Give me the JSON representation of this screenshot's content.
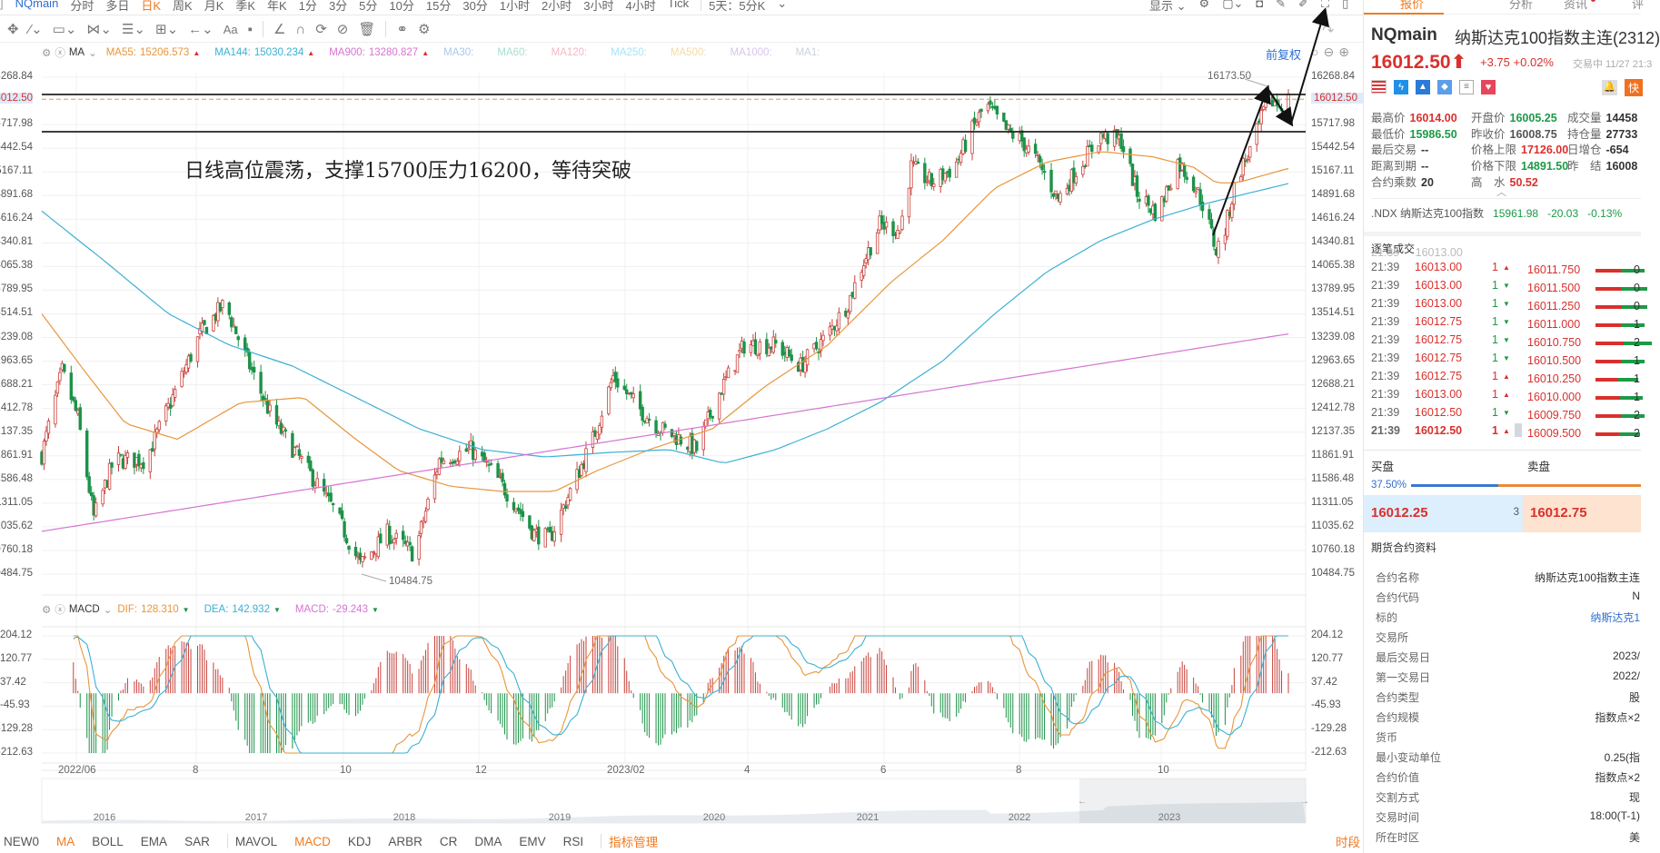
{
  "toolbar": {
    "symbol": "NQmain",
    "periods": [
      "分时",
      "多日",
      "日K",
      "周K",
      "月K",
      "季K",
      "年K",
      "1分",
      "3分",
      "5分",
      "10分",
      "15分",
      "30分",
      "1小时",
      "2小时",
      "3小时",
      "4小时",
      "Tick"
    ],
    "active_period": "日K",
    "multi": "5天：5分K",
    "display": "显示"
  },
  "legend": {
    "ma_label": "MA",
    "ma55": "MA55:",
    "ma55_v": "15206.573",
    "ma144": "MA144:",
    "ma144_v": "15030.234",
    "ma900": "MA900:",
    "ma900_v": "13280.827",
    "inactive": [
      "MA30:",
      "MA60:",
      "MA120:",
      "MA250:",
      "MA500:",
      "MA1000:",
      "MA1:"
    ],
    "adjust": "前复权"
  },
  "colors": {
    "ma55": "#e8963a",
    "ma144": "#3ab0d4",
    "ma900": "#d674d2",
    "up": "#c9403a",
    "down": "#1c9248",
    "accent": "#ef7a22"
  },
  "annotation": {
    "text": "日线高位震荡，支撑15700压力16200，等待突破",
    "high_label": "16173.50",
    "low_label": "10484.75"
  },
  "chart_data": {
    "type": "candlestick",
    "yticks": [
      "16268.84",
      "16012.50",
      "15717.98",
      "15442.54",
      "15167.11",
      "14891.68",
      "14616.24",
      "14340.81",
      "14065.38",
      "13789.95",
      "13514.51",
      "13239.08",
      "12963.65",
      "12688.21",
      "12412.78",
      "12137.35",
      "11861.91",
      "11586.48",
      "11311.05",
      "11035.62",
      "10760.18",
      "10484.75"
    ],
    "ylim": [
      10484.75,
      16268.84
    ],
    "current_price": 16012.5,
    "xlabels": [
      "2022/06",
      "8",
      "10",
      "12",
      "2023/02",
      "4",
      "6",
      "8",
      "10"
    ],
    "close_path": [
      [
        "2022-05-24",
        11873
      ],
      [
        "2022-06-02",
        12847
      ],
      [
        "2022-06-09",
        12299
      ],
      [
        "2022-06-16",
        11142
      ],
      [
        "2022-06-25",
        11812
      ],
      [
        "2022-07-09",
        11812
      ],
      [
        "2022-07-21",
        12542
      ],
      [
        "2022-08-02",
        13273
      ],
      [
        "2022-08-13",
        13638
      ],
      [
        "2022-08-22",
        13030
      ],
      [
        "2022-09-03",
        12299
      ],
      [
        "2022-09-22",
        11568
      ],
      [
        "2022-10-01",
        11203
      ],
      [
        "2022-10-12",
        10594
      ],
      [
        "2022-10-24",
        10959
      ],
      [
        "2022-11-05",
        10716
      ],
      [
        "2022-11-16",
        11812
      ],
      [
        "2022-11-30",
        11934
      ],
      [
        "2022-12-09",
        11690
      ],
      [
        "2022-12-19",
        11325
      ],
      [
        "2022-12-28",
        10959
      ],
      [
        "2023-01-04",
        10899
      ],
      [
        "2023-01-13",
        11447
      ],
      [
        "2023-01-23",
        12055
      ],
      [
        "2023-02-01",
        12786
      ],
      [
        "2023-02-12",
        12421
      ],
      [
        "2023-02-22",
        12177
      ],
      [
        "2023-03-03",
        12055
      ],
      [
        "2023-03-10",
        11934
      ],
      [
        "2023-03-19",
        12542
      ],
      [
        "2023-03-31",
        13151
      ],
      [
        "2023-04-14",
        13151
      ],
      [
        "2023-04-25",
        12907
      ],
      [
        "2023-05-07",
        13273
      ],
      [
        "2023-05-16",
        13638
      ],
      [
        "2023-05-23",
        14125
      ],
      [
        "2023-05-30",
        14552
      ],
      [
        "2023-06-08",
        14491
      ],
      [
        "2023-06-13",
        15221
      ],
      [
        "2023-06-22",
        15039
      ],
      [
        "2023-07-02",
        15221
      ],
      [
        "2023-07-11",
        15708
      ],
      [
        "2023-07-16",
        15952
      ],
      [
        "2023-07-25",
        15648
      ],
      [
        "2023-08-01",
        15526
      ],
      [
        "2023-08-08",
        15282
      ],
      [
        "2023-08-17",
        14856
      ],
      [
        "2023-08-26",
        15221
      ],
      [
        "2023-09-05",
        15587
      ],
      [
        "2023-09-14",
        15526
      ],
      [
        "2023-09-21",
        14917
      ],
      [
        "2023-09-30",
        14673
      ],
      [
        "2023-10-09",
        15282
      ],
      [
        "2023-10-16",
        15039
      ],
      [
        "2023-10-21",
        14734
      ],
      [
        "2023-10-26",
        14247
      ],
      [
        "2023-10-30",
        14491
      ],
      [
        "2023-11-04",
        15100
      ],
      [
        "2023-11-11",
        15465
      ],
      [
        "2023-11-18",
        16013
      ],
      [
        "2023-11-23",
        15952
      ],
      [
        "2023-11-27",
        16012.5
      ]
    ],
    "ma55": [
      [
        "2022-05-24",
        13514
      ],
      [
        "2022-06-12",
        12847
      ],
      [
        "2022-06-30",
        12238
      ],
      [
        "2022-07-23",
        12055
      ],
      [
        "2022-08-20",
        12481
      ],
      [
        "2022-09-17",
        12542
      ],
      [
        "2022-10-10",
        12055
      ],
      [
        "2022-10-29",
        11690
      ],
      [
        "2022-11-21",
        11507
      ],
      [
        "2022-12-14",
        11447
      ],
      [
        "2023-01-06",
        11447
      ],
      [
        "2023-01-25",
        11690
      ],
      [
        "2023-02-17",
        11934
      ],
      [
        "2023-03-17",
        12177
      ],
      [
        "2023-04-09",
        12664
      ],
      [
        "2023-05-07",
        13151
      ],
      [
        "2023-06-04",
        13882
      ],
      [
        "2023-06-27",
        14369
      ],
      [
        "2023-07-20",
        14978
      ],
      [
        "2023-08-12",
        15282
      ],
      [
        "2023-09-05",
        15404
      ],
      [
        "2023-09-28",
        15343
      ],
      [
        "2023-10-16",
        15221
      ],
      [
        "2023-10-26",
        15039
      ],
      [
        "2023-11-04",
        15039
      ],
      [
        "2023-11-27",
        15206.573
      ]
    ],
    "ma144": [
      [
        "2022-05-24",
        14710
      ],
      [
        "2022-06-21",
        14125
      ],
      [
        "2022-07-19",
        13516
      ],
      [
        "2022-08-15",
        13151
      ],
      [
        "2022-09-12",
        12907
      ],
      [
        "2022-10-10",
        12542
      ],
      [
        "2022-11-07",
        12177
      ],
      [
        "2022-12-05",
        11934
      ],
      [
        "2023-01-02",
        11848
      ],
      [
        "2023-01-30",
        11900
      ],
      [
        "2023-02-26",
        11934
      ],
      [
        "2023-03-22",
        11775
      ],
      [
        "2023-04-14",
        11934
      ],
      [
        "2023-05-07",
        12177
      ],
      [
        "2023-05-30",
        12481
      ],
      [
        "2023-06-27",
        12968
      ],
      [
        "2023-07-20",
        13516
      ],
      [
        "2023-08-12",
        14003
      ],
      [
        "2023-09-05",
        14369
      ],
      [
        "2023-09-28",
        14612
      ],
      [
        "2023-10-21",
        14795
      ],
      [
        "2023-11-09",
        14917
      ],
      [
        "2023-11-27",
        15030.234
      ]
    ],
    "ma900": [
      [
        "2022-05-24",
        10983
      ],
      [
        "2023-11-27",
        13280.827
      ]
    ],
    "macd": {
      "label": "MACD",
      "dif_label": "DIF:",
      "dif": "128.310",
      "dea_label": "DEA:",
      "dea": "142.932",
      "macd_label": "MACD:",
      "macd": "-29.243",
      "yticks": [
        "204.12",
        "120.77",
        "37.42",
        "-45.93",
        "-129.28",
        "-212.63"
      ],
      "ylim": [
        -212.63,
        204.12
      ]
    },
    "navigator_years": [
      "2016",
      "2017",
      "2018",
      "2019",
      "2020",
      "2021",
      "2022",
      "2023"
    ]
  },
  "bottom": {
    "tabs": [
      "NEW0",
      "MA",
      "BOLL",
      "EMA",
      "SAR",
      "MAVOL",
      "MACD",
      "KDJ",
      "ARBR",
      "CR",
      "DMA",
      "EMV",
      "RSI"
    ],
    "manage": "指标管理",
    "period": "时段"
  },
  "panel": {
    "tabs": [
      "报价",
      "分析",
      "资讯",
      "评"
    ],
    "symbol": "NQmain",
    "name": "纳斯达克100指数主连(2312)",
    "price": "16012.50",
    "change": "+3.75",
    "pct": "+0.02%",
    "status": "交易中 11/27 21:3",
    "quick": "快",
    "stats": [
      [
        {
          "l": "最高价",
          "v": "16014.00",
          "c": "red"
        },
        {
          "l": "开盘价",
          "v": "16005.25",
          "c": "green"
        },
        {
          "l": "成交量",
          "v": "14458",
          "c": ""
        }
      ],
      [
        {
          "l": "最低价",
          "v": "15986.50",
          "c": "green"
        },
        {
          "l": "昨收价",
          "v": "16008.75",
          "c": "gray"
        },
        {
          "l": "持仓量",
          "v": "27733",
          "c": ""
        }
      ],
      [
        {
          "l": "最后交易",
          "v": "--",
          "c": ""
        },
        {
          "l": "价格上限",
          "v": "17126.00",
          "c": "red"
        },
        {
          "l": "日增仓",
          "v": "-654",
          "c": ""
        }
      ],
      [
        {
          "l": "距离到期",
          "v": "--",
          "c": ""
        },
        {
          "l": "价格下限",
          "v": "14891.50",
          "c": "green"
        },
        {
          "l": "昨　结",
          "v": "16008",
          "c": ""
        }
      ],
      [
        {
          "l": "合约乘数",
          "v": "20",
          "c": ""
        },
        {
          "l": "高　水",
          "v": "50.52",
          "c": "red"
        }
      ]
    ],
    "index": {
      "name": ".NDX 纳斯达克100指数",
      "price": "15961.98",
      "change": "-20.03",
      "pct": "-0.13%"
    },
    "trades_title": "逐笔成交",
    "trades": [
      {
        "t": "21:39",
        "p": "16013.00",
        "q": "1",
        "d": "up"
      },
      {
        "t": "21:39",
        "p": "16013.00",
        "q": "1",
        "d": "down"
      },
      {
        "t": "21:39",
        "p": "16013.00",
        "q": "1",
        "d": "down"
      },
      {
        "t": "21:39",
        "p": "16012.75",
        "q": "1",
        "d": "down"
      },
      {
        "t": "21:39",
        "p": "16012.75",
        "q": "1",
        "d": "down"
      },
      {
        "t": "21:39",
        "p": "16012.75",
        "q": "1",
        "d": "down"
      },
      {
        "t": "21:39",
        "p": "16012.75",
        "q": "1",
        "d": "up"
      },
      {
        "t": "21:39",
        "p": "16013.00",
        "q": "1",
        "d": "up"
      },
      {
        "t": "21:39",
        "p": "16012.50",
        "q": "1",
        "d": "down"
      },
      {
        "t": "21:39",
        "p": "16012.50",
        "q": "1",
        "d": "up"
      }
    ],
    "book": [
      {
        "p": "16011.750",
        "q": "0",
        "r": 0.6
      },
      {
        "p": "16011.500",
        "q": "0",
        "r": 0.65
      },
      {
        "p": "16011.250",
        "q": "0",
        "r": 0.65
      },
      {
        "p": "16011.000",
        "q": "1",
        "r": 0.6
      },
      {
        "p": "16010.750",
        "q": "2",
        "r": 0.75
      },
      {
        "p": "16010.500",
        "q": "1",
        "r": 0.6
      },
      {
        "p": "16010.250",
        "q": "1",
        "r": 0.45
      },
      {
        "p": "16010.000",
        "q": "1",
        "r": 0.55
      },
      {
        "p": "16009.750",
        "q": "2",
        "r": 0.6
      },
      {
        "p": "16009.500",
        "q": "2",
        "r": 0.5
      }
    ],
    "buy_label": "买盘",
    "sell_label": "卖盘",
    "buy_pct": "37.50%",
    "bid": "16012.25",
    "bid_qty": "3",
    "ask": "16012.75",
    "info_title": "期货合约资料",
    "info": [
      {
        "l": "合约名称",
        "v": "纳斯达克100指数主连"
      },
      {
        "l": "合约代码",
        "v": "N"
      },
      {
        "l": "标的",
        "v": "纳斯达克1",
        "link": true
      },
      {
        "l": "交易所",
        "v": ""
      },
      {
        "l": "最后交易日",
        "v": "2023/"
      },
      {
        "l": "第一交易日",
        "v": "2022/"
      },
      {
        "l": "合约类型",
        "v": "股"
      },
      {
        "l": "合约规模",
        "v": "指数点×2"
      },
      {
        "l": "货币",
        "v": ""
      },
      {
        "l": "最小变动单位",
        "v": "0.25(指"
      },
      {
        "l": "合约价值",
        "v": "指数点×2"
      },
      {
        "l": "交割方式",
        "v": "现"
      },
      {
        "l": "交易时间",
        "v": "18:00(T-1)"
      },
      {
        "l": "所在时区",
        "v": "美"
      }
    ]
  }
}
